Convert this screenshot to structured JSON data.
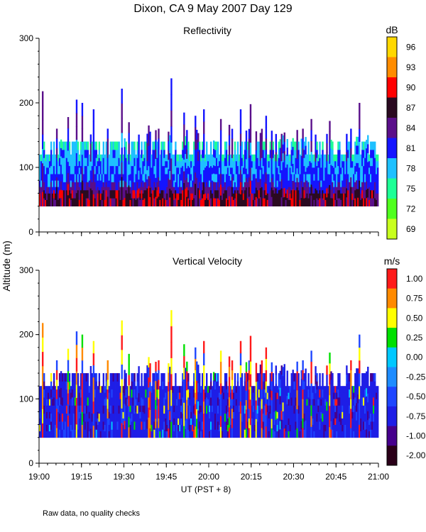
{
  "page": {
    "title": "Dixon, CA  9 May 2007  Day 129",
    "ylabel": "Altitude (m)",
    "xlabel": "UT  (PST + 8)",
    "footnote": "Raw data, no quality checks"
  },
  "chart_data": [
    {
      "type": "heatmap",
      "title": "Reflectivity",
      "units": "dB",
      "x_range": [
        "19:00",
        "21:00"
      ],
      "x_ticks": [
        "19:00",
        "19:15",
        "19:30",
        "19:45",
        "20:00",
        "20:15",
        "20:30",
        "20:45",
        "21:00"
      ],
      "ylim": [
        0,
        300
      ],
      "y_ticks": [
        0,
        100,
        200,
        300
      ],
      "range_gate_bottom_m": 40,
      "typical_echo_top_m": [
        120,
        140
      ],
      "colorbar_labels": [
        "96",
        "93",
        "90",
        "87",
        "84",
        "81",
        "78",
        "75",
        "72",
        "69"
      ],
      "colorbar_colors": [
        "#ffd800",
        "#ff8c00",
        "#ff0000",
        "#2a0a20",
        "#5a0f8a",
        "#1414ff",
        "#1ec0ff",
        "#1eff96",
        "#50ff1e",
        "#c8ff1e"
      ]
    },
    {
      "type": "heatmap",
      "title": "Vertical Velocity",
      "units": "m/s",
      "x_range": [
        "19:00",
        "21:00"
      ],
      "x_ticks": [
        "19:00",
        "19:15",
        "19:30",
        "19:45",
        "20:00",
        "20:15",
        "20:30",
        "20:45",
        "21:00"
      ],
      "ylim": [
        0,
        300
      ],
      "y_ticks": [
        0,
        100,
        200,
        300
      ],
      "range_gate_bottom_m": 40,
      "typical_echo_top_m": [
        120,
        140
      ],
      "colorbar_labels": [
        "1.00",
        "0.75",
        "0.50",
        "0.25",
        "0.00",
        "-0.25",
        "-0.50",
        "-0.75",
        "-1.00",
        "-2.00"
      ],
      "colorbar_colors": [
        "#ff1a1a",
        "#ff8a00",
        "#ffff00",
        "#00e000",
        "#00c8ff",
        "#1e8cff",
        "#1e46ff",
        "#1e1ee6",
        "#46008c",
        "#2a0018"
      ]
    }
  ]
}
